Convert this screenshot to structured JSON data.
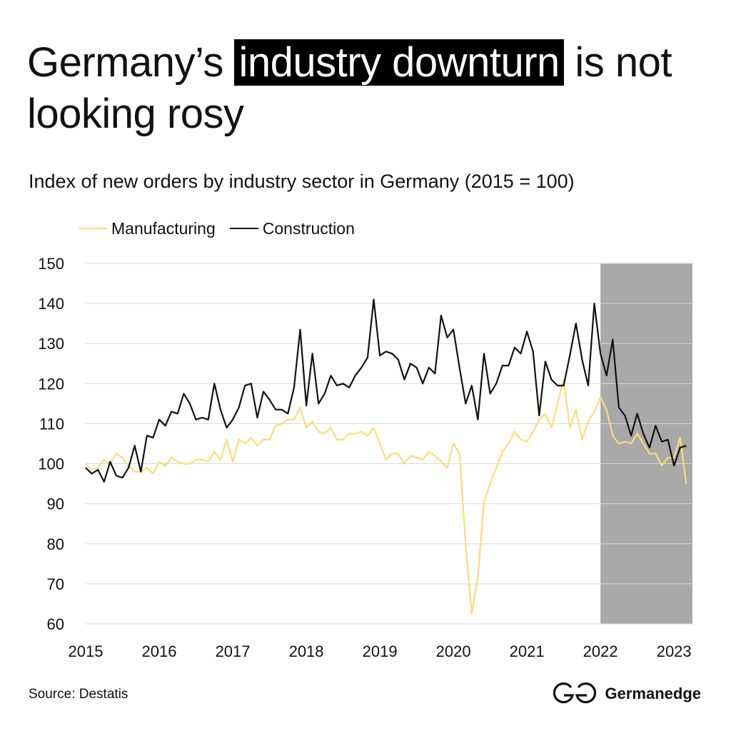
{
  "title": {
    "before": "Germany’s ",
    "highlight": "industry downturn",
    "after": " is not looking rosy"
  },
  "subtitle": "Index of new orders by industry sector in Germany (2015 = 100)",
  "source": "Source: Destatis",
  "brand": "Germanedge",
  "chart_data": {
    "type": "line",
    "ylim": [
      60,
      150
    ],
    "yticks": [
      60,
      70,
      80,
      90,
      100,
      110,
      120,
      130,
      140,
      150
    ],
    "xticks": [
      2015,
      2016,
      2017,
      2018,
      2019,
      2020,
      2021,
      2022,
      2023
    ],
    "x_range": [
      2015.0,
      2023.2
    ],
    "grid": "horizontal",
    "legend_position": "top-left",
    "shaded_region": {
      "from": 2022.0,
      "to": 2023.25,
      "color": "#a9a9a9"
    },
    "series": [
      {
        "name": "Manufacturing",
        "color": "#f7de76",
        "x_start": 2015.0,
        "step": 0.08333,
        "values": [
          100,
          98.5,
          99,
          101,
          100,
          102.5,
          101.5,
          99.5,
          98,
          98,
          99,
          97.5,
          100.5,
          99.5,
          101.5,
          100.5,
          100,
          100,
          101,
          101,
          100.5,
          103,
          101,
          106,
          100.5,
          106,
          105,
          106.5,
          104.5,
          106,
          106,
          109.5,
          110,
          111,
          111,
          114,
          109,
          110.5,
          108,
          107.5,
          109,
          106,
          106,
          107.5,
          107.5,
          108,
          107,
          109,
          105,
          101,
          102.5,
          102.5,
          100,
          102,
          101.5,
          101,
          103,
          102,
          100.5,
          99,
          105,
          102.5,
          80,
          62.5,
          72,
          90.5,
          95,
          99,
          103,
          105,
          108,
          106,
          105.5,
          108,
          111,
          112.5,
          109,
          115,
          121,
          109,
          113.5,
          106,
          110.5,
          113,
          116.5,
          113.5,
          107,
          105,
          105.5,
          105,
          107.5,
          105,
          102.5,
          102.5,
          99.5,
          101.5,
          101.5,
          106.5,
          95
        ]
      },
      {
        "name": "Construction",
        "color": "#111111",
        "x_start": 2015.0,
        "step": 0.08333,
        "values": [
          99,
          97.5,
          98.5,
          95.5,
          100.5,
          97,
          96.5,
          99,
          104.5,
          98,
          107,
          106.5,
          111,
          109.5,
          113,
          112.5,
          117.5,
          115,
          111,
          111.5,
          111,
          120,
          113.5,
          109,
          111,
          114,
          119.5,
          120,
          111.5,
          118,
          116,
          113.5,
          113.5,
          112.5,
          119,
          133.5,
          114.5,
          127.5,
          115,
          117.5,
          122,
          119.5,
          120,
          119,
          122,
          124,
          126.5,
          141,
          127,
          128,
          127.5,
          126,
          121,
          125,
          124,
          120,
          124,
          122.5,
          137,
          131.5,
          133.5,
          124,
          115,
          119.5,
          111,
          127.5,
          117.5,
          120,
          124.5,
          124.5,
          129,
          127.5,
          133,
          128,
          112,
          125.5,
          121,
          119.5,
          119.5,
          127,
          135,
          126,
          119.5,
          140,
          127.5,
          122,
          131,
          114,
          112,
          107,
          112.5,
          107.5,
          104,
          109.5,
          105.5,
          106,
          99.5,
          104,
          104.5
        ]
      }
    ]
  }
}
